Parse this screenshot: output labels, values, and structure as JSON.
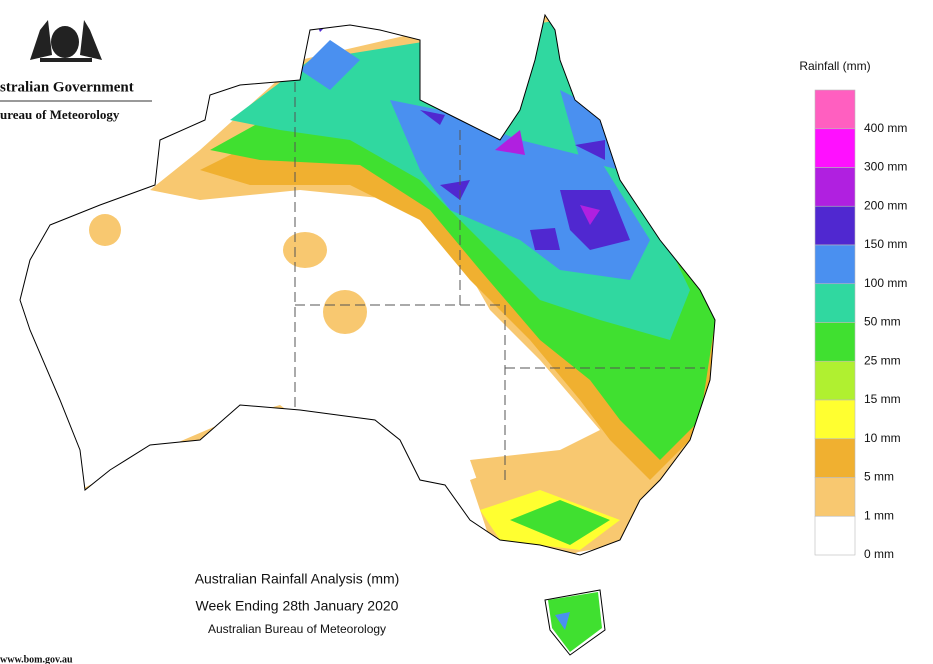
{
  "header": {
    "government": "stralian Government",
    "bureau": "ureau of Meteorology"
  },
  "caption": {
    "title": "Australian Rainfall Analysis (mm)",
    "period": "Week Ending 28th January 2020",
    "source": "Australian Bureau of Meteorology"
  },
  "footer": "www.bom.gov.au",
  "legend": {
    "title": "Rainfall (mm)",
    "items": [
      {
        "label": "400 mm",
        "color": "#ff5fc0"
      },
      {
        "label": "300 mm",
        "color": "#ff10ff"
      },
      {
        "label": "200 mm",
        "color": "#b020e0"
      },
      {
        "label": "150 mm",
        "color": "#5028d0"
      },
      {
        "label": "100 mm",
        "color": "#4a90f0"
      },
      {
        "label": "50 mm",
        "color": "#30d8a0"
      },
      {
        "label": "25 mm",
        "color": "#40e030"
      },
      {
        "label": "15 mm",
        "color": "#b0f030"
      },
      {
        "label": "10 mm",
        "color": "#ffff30"
      },
      {
        "label": "5 mm",
        "color": "#f0b030"
      },
      {
        "label": "1 mm",
        "color": "#f8c870"
      },
      {
        "label": "0 mm",
        "color": "#ffffff"
      }
    ]
  }
}
